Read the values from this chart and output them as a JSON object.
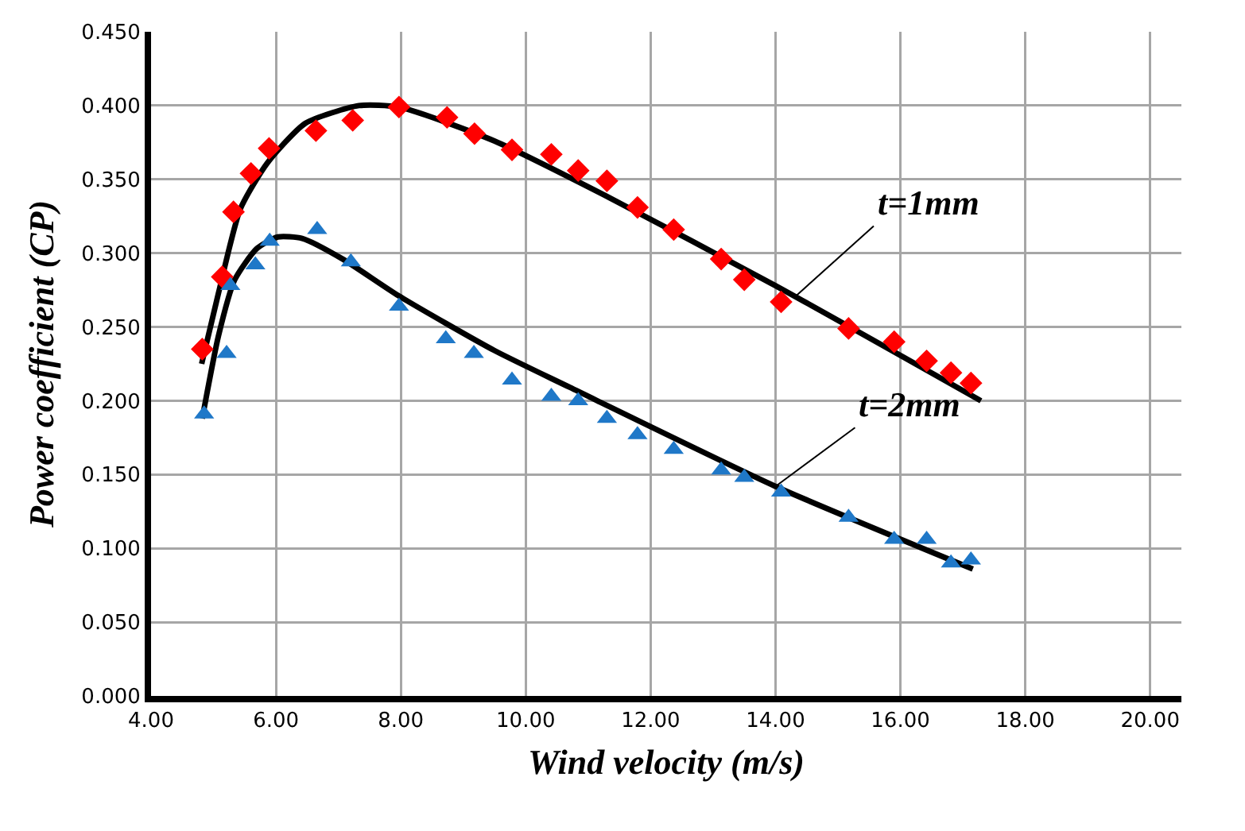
{
  "chart_data": {
    "type": "scatter",
    "xlabel": "Wind velocity (m/s)",
    "ylabel": "Power coefficient (CP)",
    "xlim": [
      4,
      20.5
    ],
    "xticks": [
      {
        "value": 4,
        "label": "4.00"
      },
      {
        "value": 6,
        "label": "6.00"
      },
      {
        "value": 8,
        "label": "8.00"
      },
      {
        "value": 10,
        "label": "10.00"
      },
      {
        "value": 12,
        "label": "12.00"
      },
      {
        "value": 14,
        "label": "14.00"
      },
      {
        "value": 16,
        "label": "16.00"
      },
      {
        "value": 18,
        "label": "18.00"
      },
      {
        "value": 20,
        "label": "20.00"
      }
    ],
    "ylim": [
      0,
      0.45
    ],
    "yticks": [
      {
        "value": 0,
        "label": "0.000"
      },
      {
        "value": 0.05,
        "label": "0.050"
      },
      {
        "value": 0.1,
        "label": "0.100"
      },
      {
        "value": 0.15,
        "label": "0.150"
      },
      {
        "value": 0.2,
        "label": "0.200"
      },
      {
        "value": 0.25,
        "label": "0.250"
      },
      {
        "value": 0.3,
        "label": "0.300"
      },
      {
        "value": 0.35,
        "label": "0.350"
      },
      {
        "value": 0.4,
        "label": "0.400"
      },
      {
        "value": 0.45,
        "label": "0.450"
      }
    ],
    "grid": true,
    "series": [
      {
        "type": "scatter",
        "marker": "diamond",
        "color": "#ff0000",
        "x": [
          4.82,
          5.14,
          5.32,
          5.6,
          5.89,
          6.64,
          7.23,
          7.97,
          8.74,
          9.18,
          9.78,
          10.41,
          10.84,
          11.3,
          11.79,
          12.37,
          13.13,
          13.5,
          14.09,
          15.17,
          15.9,
          16.42,
          16.81,
          17.13
        ],
        "values": [
          0.235,
          0.284,
          0.328,
          0.354,
          0.371,
          0.383,
          0.39,
          0.399,
          0.392,
          0.381,
          0.37,
          0.367,
          0.356,
          0.349,
          0.331,
          0.316,
          0.296,
          0.282,
          0.267,
          0.249,
          0.24,
          0.227,
          0.219,
          0.212
        ]
      },
      {
        "type": "scatter",
        "marker": "triangle",
        "color": "#1f78c8",
        "x": [
          4.85,
          5.21,
          5.27,
          5.67,
          5.9,
          6.66,
          7.2,
          7.97,
          8.72,
          9.17,
          9.78,
          10.41,
          10.84,
          11.3,
          11.79,
          12.37,
          13.13,
          13.5,
          14.09,
          15.17,
          15.9,
          16.42,
          16.81,
          17.13
        ],
        "values": [
          0.191,
          0.232,
          0.278,
          0.292,
          0.308,
          0.316,
          0.294,
          0.264,
          0.242,
          0.232,
          0.214,
          0.203,
          0.2,
          0.188,
          0.177,
          0.167,
          0.153,
          0.148,
          0.138,
          0.121,
          0.106,
          0.106,
          0.09,
          0.092
        ]
      },
      {
        "type": "line",
        "marker": "none",
        "color": "#000000",
        "x": [
          4.81,
          5.08,
          5.43,
          5.86,
          6.47,
          7.33,
          7.97,
          9.5,
          11.23,
          14.0,
          17.29
        ],
        "values": [
          0.225,
          0.273,
          0.33,
          0.361,
          0.388,
          0.4,
          0.399,
          0.376,
          0.34,
          0.278,
          0.2
        ]
      },
      {
        "type": "line",
        "marker": "none",
        "color": "#000000",
        "x": [
          4.82,
          5.08,
          5.34,
          5.69,
          6.03,
          6.42,
          7.07,
          7.97,
          9.5,
          10.71,
          14.0,
          17.16
        ],
        "values": [
          0.188,
          0.244,
          0.282,
          0.303,
          0.311,
          0.31,
          0.296,
          0.271,
          0.234,
          0.209,
          0.142,
          0.086
        ]
      }
    ],
    "annotations": [
      {
        "text": "t=1mm",
        "x": 14.3,
        "y": 0.27
      },
      {
        "text": "t=2mm",
        "x": 14.0,
        "y": 0.142
      }
    ]
  }
}
